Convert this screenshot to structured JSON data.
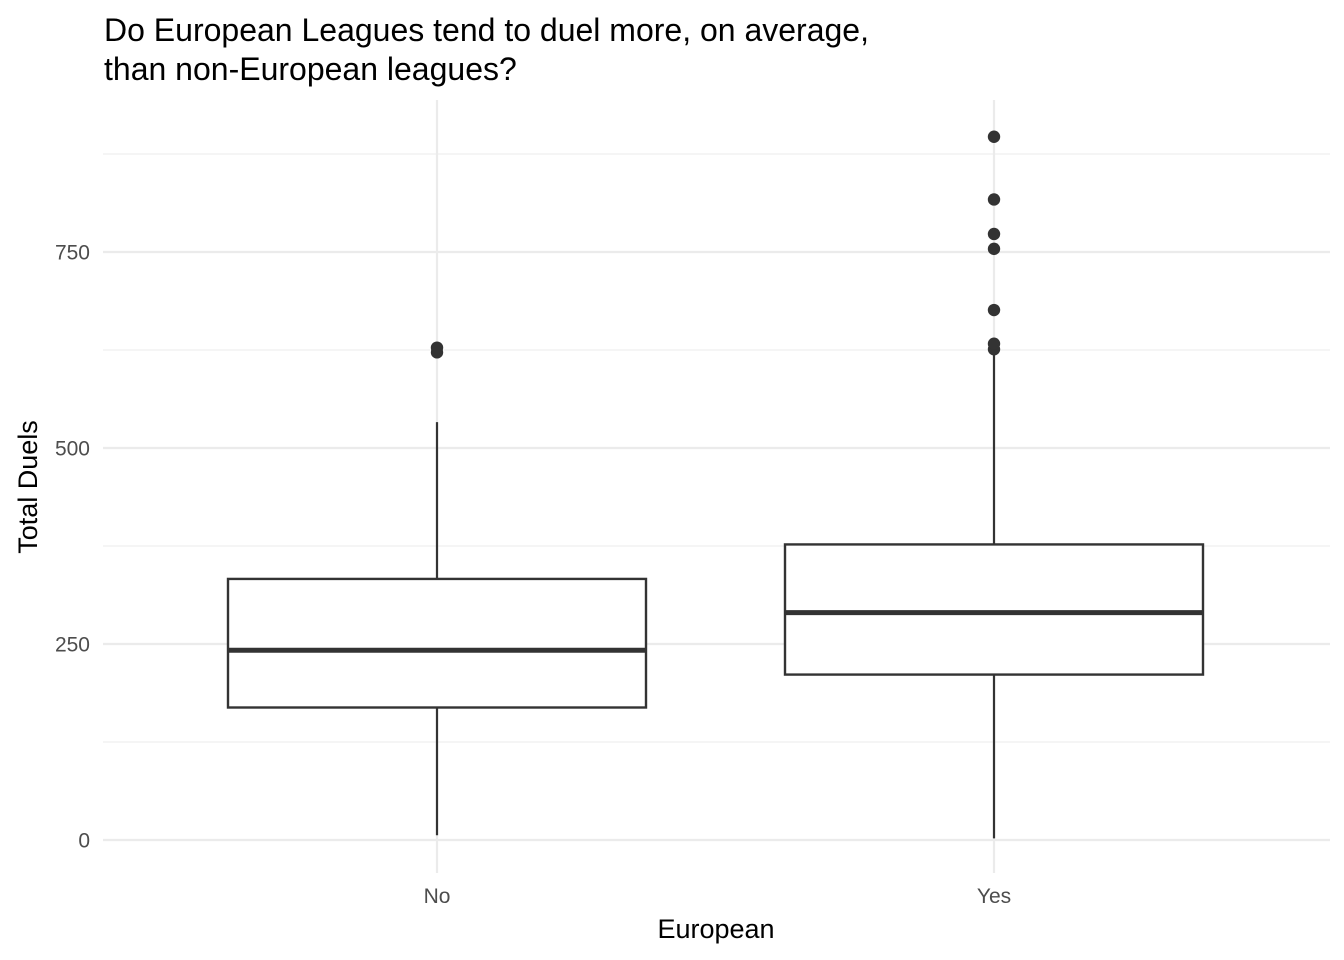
{
  "chart_data": {
    "type": "boxplot",
    "title": "Do European Leagues tend to duel more, on average, than non-European leagues?",
    "title_lines": [
      "Do European Leagues tend to duel more, on average,",
      "than non-European leagues?"
    ],
    "xlabel": "European",
    "ylabel": "Total Duels",
    "categories": [
      "No",
      "Yes"
    ],
    "ylim": [
      -70,
      905
    ],
    "yticks": [
      0,
      250,
      500,
      750
    ],
    "ytick_labels": [
      "0",
      "250",
      "500",
      "750"
    ],
    "minor_yticks": [
      125,
      375,
      625,
      875
    ],
    "grid": true,
    "box_color": "#333333",
    "boxes": [
      {
        "category": "No",
        "whisker_low": 6,
        "q1": 169,
        "median": 242,
        "q3": 333,
        "whisker_high": 533,
        "outliers": [
          622,
          628
        ]
      },
      {
        "category": "Yes",
        "whisker_low": 2,
        "q1": 211,
        "median": 290,
        "q3": 377,
        "whisker_high": 622,
        "outliers": [
          626,
          633,
          676,
          754,
          773,
          817,
          897
        ]
      }
    ]
  }
}
